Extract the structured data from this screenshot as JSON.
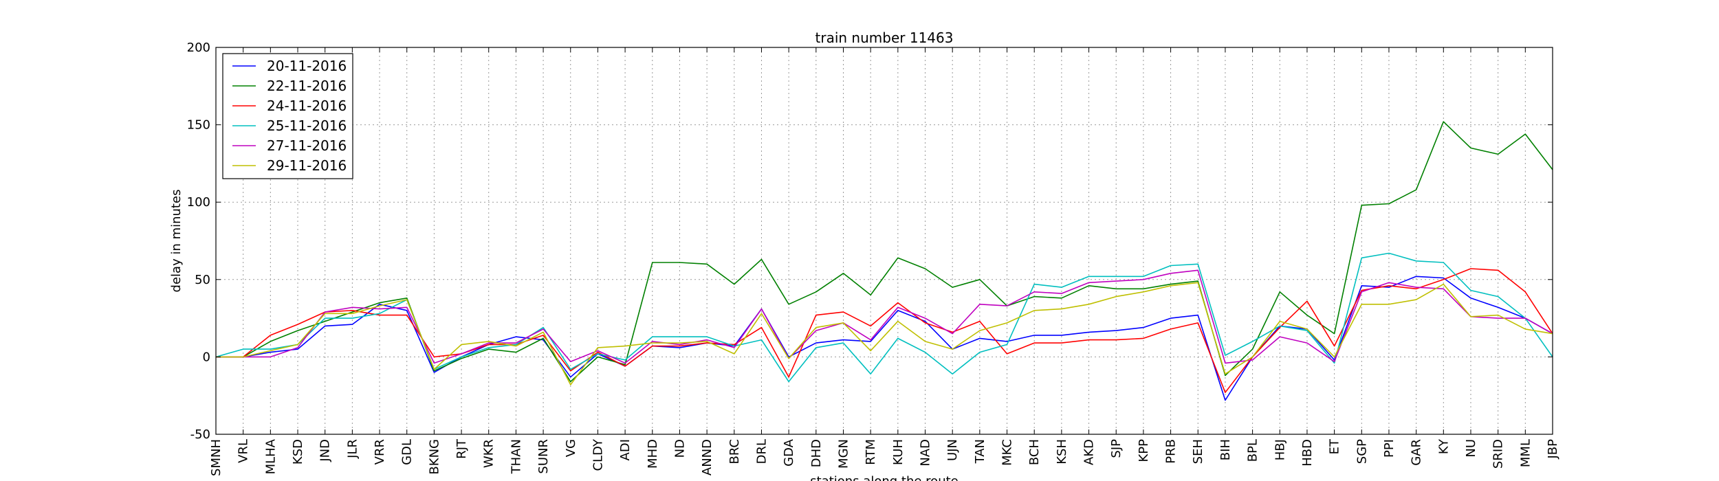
{
  "chart_data": {
    "type": "line",
    "title": "train number 11463",
    "xlabel": "stations along the route",
    "ylabel": "delay in minutes",
    "ylim": [
      -50,
      200
    ],
    "yticks": [
      -50,
      0,
      50,
      100,
      150,
      200
    ],
    "grid": true,
    "legend_position": "top-left",
    "categories": [
      "SMNH",
      "VRL",
      "MLHA",
      "KSD",
      "JND",
      "JLR",
      "VRR",
      "GDL",
      "BKNG",
      "RJT",
      "WKR",
      "THAN",
      "SUNR",
      "VG",
      "CLDY",
      "ADI",
      "MHD",
      "ND",
      "ANND",
      "BRC",
      "DRL",
      "GDA",
      "DHD",
      "MGN",
      "RTM",
      "KUH",
      "NAD",
      "UJN",
      "TAN",
      "MKC",
      "BCH",
      "KSH",
      "AKD",
      "SJP",
      "KPP",
      "PRB",
      "SEH",
      "BIH",
      "BPL",
      "HBJ",
      "HBD",
      "ET",
      "SGP",
      "PPI",
      "GAR",
      "KY",
      "NU",
      "SRID",
      "MML",
      "JBP"
    ],
    "series": [
      {
        "name": "20-11-2016",
        "color": "#0000ff",
        "values": [
          0,
          0,
          3,
          5,
          20,
          21,
          34,
          30,
          -10,
          0,
          8,
          13,
          11,
          -13,
          2,
          -6,
          7,
          6,
          9,
          7,
          31,
          0,
          9,
          11,
          10,
          30,
          23,
          5,
          12,
          10,
          14,
          14,
          16,
          17,
          19,
          25,
          27,
          -28,
          0,
          20,
          18,
          -2,
          46,
          45,
          52,
          51,
          38,
          32,
          25,
          15
        ]
      },
      {
        "name": "22-11-2016",
        "color": "#008000",
        "values": [
          0,
          0,
          10,
          17,
          23,
          29,
          35,
          38,
          -9,
          -1,
          5,
          3,
          12,
          -16,
          0,
          -5,
          61,
          61,
          60,
          47,
          63,
          34,
          42,
          54,
          40,
          64,
          57,
          45,
          50,
          33,
          39,
          38,
          46,
          44,
          44,
          47,
          49,
          -12,
          5,
          42,
          27,
          15,
          98,
          99,
          108,
          152,
          135,
          131,
          144,
          121
        ]
      },
      {
        "name": "24-11-2016",
        "color": "#ff0000",
        "values": [
          0,
          0,
          14,
          21,
          29,
          30,
          27,
          27,
          0,
          2,
          8,
          8,
          14,
          -9,
          3,
          -6,
          7,
          7,
          9,
          8,
          19,
          -13,
          27,
          29,
          20,
          35,
          22,
          16,
          23,
          2,
          9,
          9,
          11,
          11,
          12,
          18,
          22,
          -23,
          0,
          19,
          36,
          7,
          43,
          46,
          44,
          50,
          57,
          56,
          42,
          15
        ]
      },
      {
        "name": "25-11-2016",
        "color": "#00bfbf",
        "values": [
          0,
          5,
          5,
          8,
          25,
          25,
          28,
          37,
          -8,
          0,
          6,
          8,
          19,
          -8,
          2,
          -2,
          13,
          13,
          13,
          7,
          11,
          -16,
          6,
          9,
          -11,
          12,
          3,
          -11,
          3,
          8,
          47,
          45,
          52,
          52,
          52,
          59,
          60,
          1,
          10,
          20,
          17,
          -4,
          64,
          67,
          62,
          61,
          43,
          39,
          25,
          0
        ]
      },
      {
        "name": "27-11-2016",
        "color": "#bf00bf",
        "values": [
          0,
          0,
          0,
          6,
          29,
          32,
          31,
          32,
          -4,
          2,
          9,
          9,
          18,
          -3,
          4,
          -4,
          10,
          8,
          11,
          6,
          31,
          -1,
          17,
          22,
          11,
          32,
          25,
          15,
          34,
          33,
          42,
          41,
          48,
          49,
          50,
          54,
          56,
          -4,
          -2,
          13,
          9,
          -3,
          42,
          48,
          45,
          44,
          26,
          25,
          25,
          15
        ]
      },
      {
        "name": "29-11-2016",
        "color": "#bfbf00",
        "values": [
          0,
          0,
          4,
          8,
          28,
          28,
          33,
          37,
          -8,
          8,
          10,
          7,
          16,
          -18,
          6,
          7,
          9,
          9,
          10,
          2,
          28,
          -1,
          19,
          22,
          4,
          23,
          10,
          5,
          17,
          22,
          30,
          31,
          34,
          39,
          42,
          46,
          48,
          -11,
          0,
          23,
          18,
          0,
          34,
          34,
          37,
          47,
          26,
          27,
          18,
          15
        ]
      }
    ]
  }
}
